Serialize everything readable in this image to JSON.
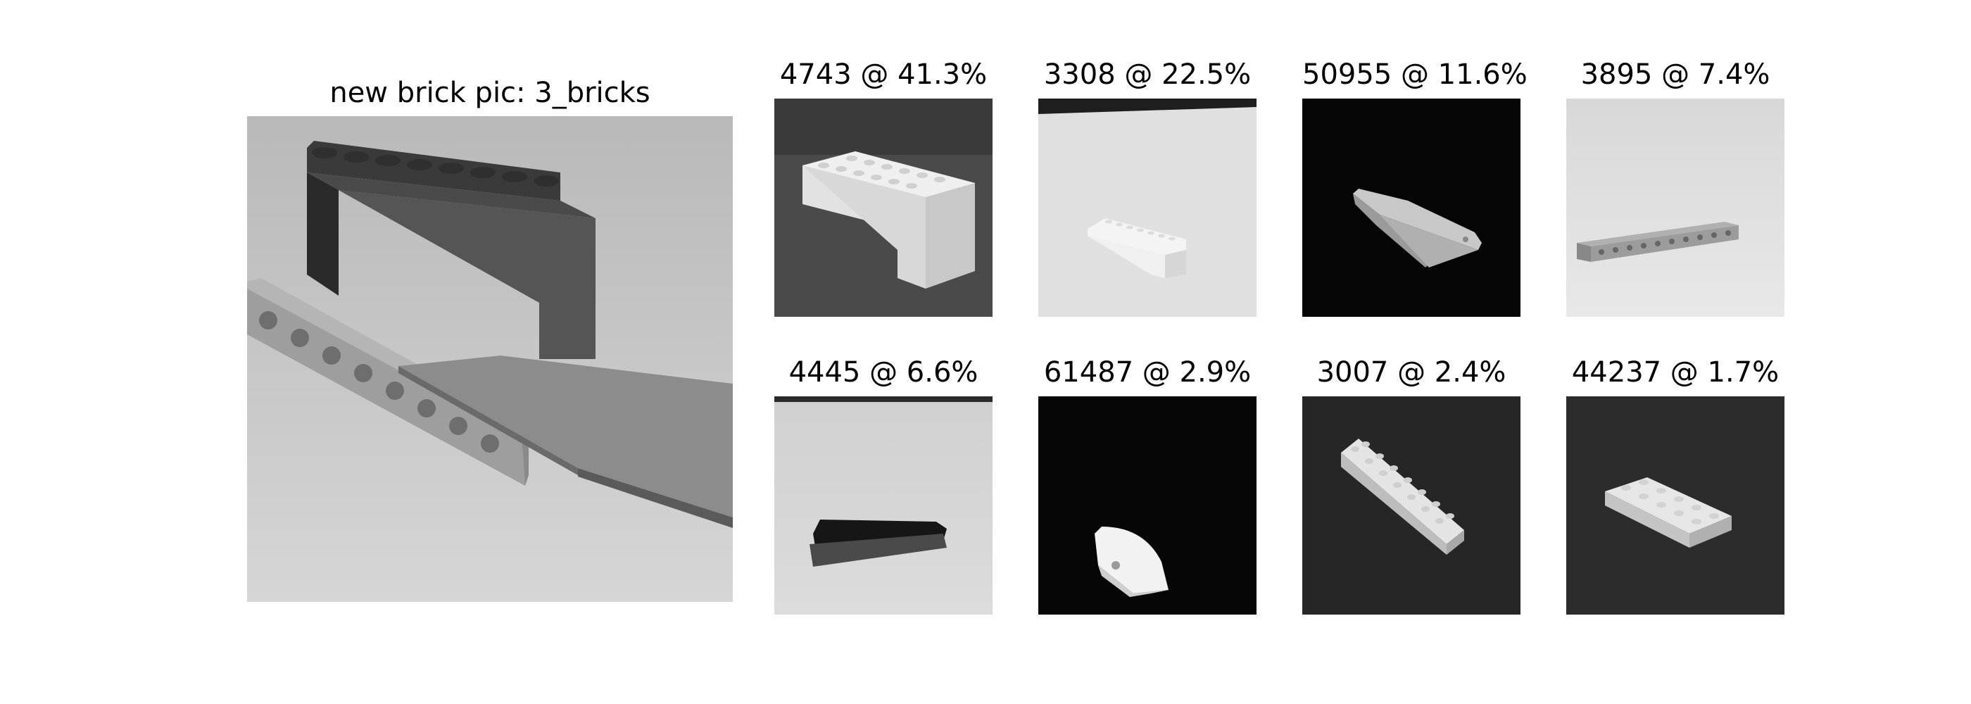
{
  "query": {
    "title": "new brick pic: 3_bricks"
  },
  "matches": [
    {
      "label": "4743 @ 41.3%"
    },
    {
      "label": "3308 @ 22.5%"
    },
    {
      "label": "50955 @ 11.6%"
    },
    {
      "label": "3895 @ 7.4%"
    },
    {
      "label": "4445 @ 6.6%"
    },
    {
      "label": "61487 @ 2.9%"
    },
    {
      "label": "3007 @ 2.4%"
    },
    {
      "label": "44237 @ 1.7%"
    }
  ]
}
